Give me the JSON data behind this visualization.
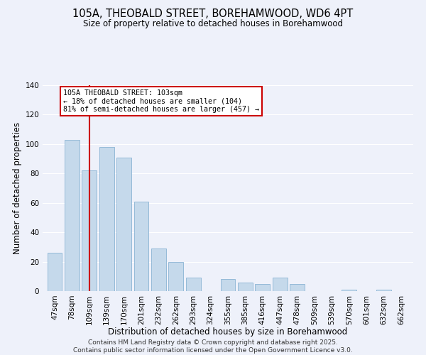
{
  "title": "105A, THEOBALD STREET, BOREHAMWOOD, WD6 4PT",
  "subtitle": "Size of property relative to detached houses in Borehamwood",
  "xlabel": "Distribution of detached houses by size in Borehamwood",
  "ylabel": "Number of detached properties",
  "bar_labels": [
    "47sqm",
    "78sqm",
    "109sqm",
    "139sqm",
    "170sqm",
    "201sqm",
    "232sqm",
    "262sqm",
    "293sqm",
    "324sqm",
    "355sqm",
    "385sqm",
    "416sqm",
    "447sqm",
    "478sqm",
    "509sqm",
    "539sqm",
    "570sqm",
    "601sqm",
    "632sqm",
    "662sqm"
  ],
  "bar_values": [
    26,
    103,
    82,
    98,
    91,
    61,
    29,
    20,
    9,
    0,
    8,
    6,
    5,
    9,
    5,
    0,
    0,
    1,
    0,
    1,
    0
  ],
  "bar_color": "#c5d9eb",
  "bar_edge_color": "#8ab4d4",
  "highlight_x_label": "109sqm",
  "highlight_line_color": "#cc0000",
  "annotation_title": "105A THEOBALD STREET: 103sqm",
  "annotation_line1": "← 18% of detached houses are smaller (104)",
  "annotation_line2": "81% of semi-detached houses are larger (457) →",
  "annotation_box_edge": "#cc0000",
  "ylim": [
    0,
    140
  ],
  "yticks": [
    0,
    20,
    40,
    60,
    80,
    100,
    120,
    140
  ],
  "background_color": "#eef1fa",
  "grid_color": "#ffffff",
  "footer_line1": "Contains HM Land Registry data © Crown copyright and database right 2025.",
  "footer_line2": "Contains public sector information licensed under the Open Government Licence v3.0.",
  "title_fontsize": 10.5,
  "subtitle_fontsize": 8.5,
  "xlabel_fontsize": 8.5,
  "ylabel_fontsize": 8.5,
  "tick_fontsize": 7.5,
  "footer_fontsize": 6.5
}
